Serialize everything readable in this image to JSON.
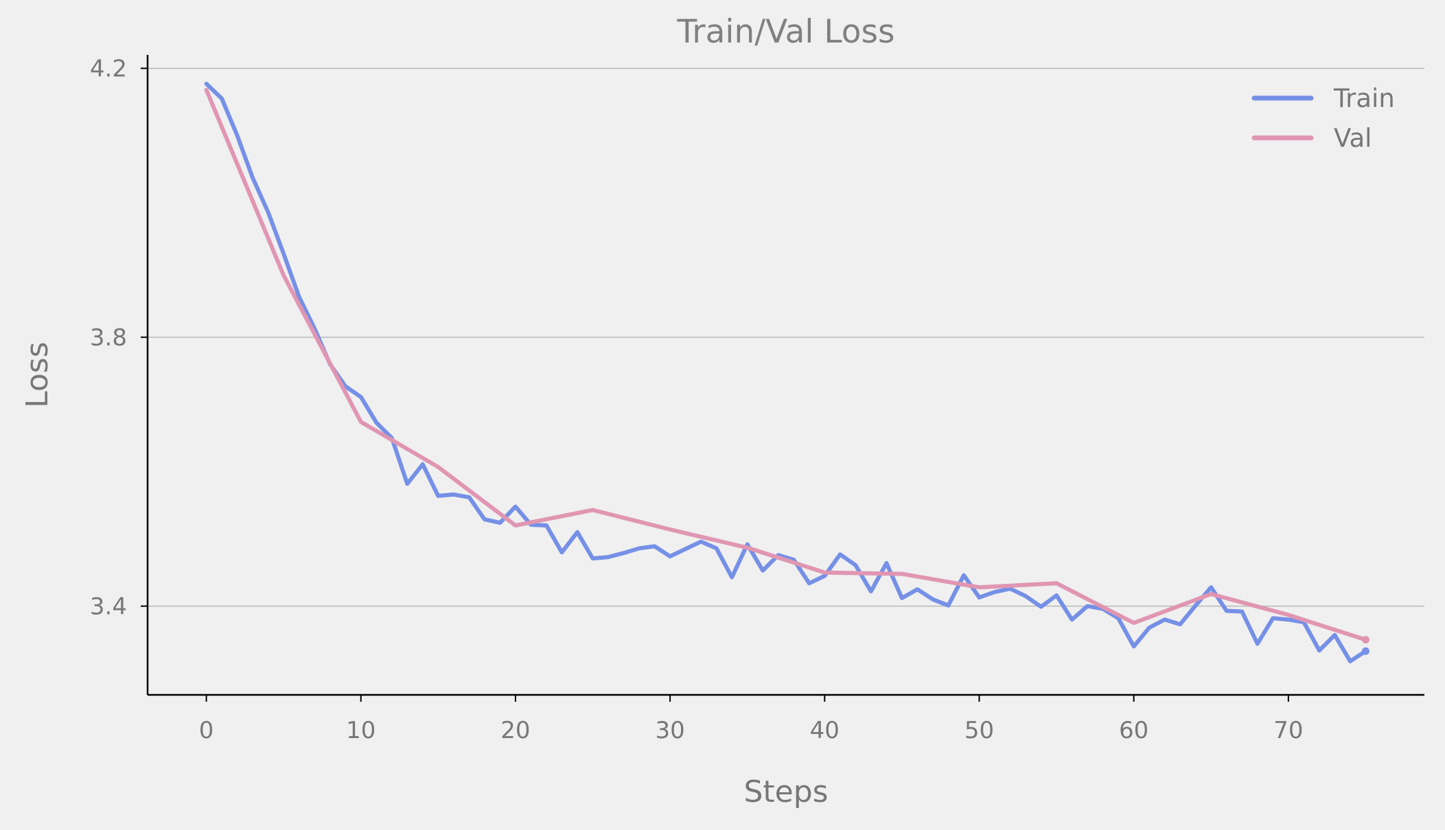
{
  "chart_data": {
    "type": "line",
    "title": "Train/Val Loss",
    "xlabel": "Steps",
    "ylabel": "Loss",
    "xlim": [
      -3.8,
      78.8
    ],
    "ylim": [
      3.268,
      4.22
    ],
    "xticks": [
      0,
      10,
      20,
      30,
      40,
      50,
      60,
      70
    ],
    "yticks": [
      3.4,
      3.8,
      4.2
    ],
    "ytick_labels": [
      "3.4",
      "3.8",
      "4.2"
    ],
    "grid": "y",
    "legend_position": "top-right",
    "series": [
      {
        "name": "Train",
        "color": "#7590e6",
        "x": [
          0,
          1,
          2,
          3,
          4,
          5,
          6,
          7,
          8,
          9,
          10,
          11,
          12,
          13,
          14,
          15,
          16,
          17,
          18,
          19,
          20,
          21,
          22,
          23,
          24,
          25,
          26,
          27,
          28,
          29,
          30,
          31,
          32,
          33,
          34,
          35,
          36,
          37,
          38,
          39,
          40,
          41,
          42,
          43,
          44,
          45,
          46,
          47,
          48,
          49,
          50,
          51,
          52,
          53,
          54,
          55,
          56,
          57,
          58,
          59,
          60,
          61,
          62,
          63,
          64,
          65,
          66,
          67,
          68,
          69,
          70,
          71,
          72,
          73,
          74,
          75
        ],
        "y": [
          4.177,
          4.155,
          4.1,
          4.037,
          3.986,
          3.924,
          3.86,
          3.813,
          3.76,
          3.727,
          3.711,
          3.673,
          3.65,
          3.582,
          3.611,
          3.564,
          3.566,
          3.562,
          3.529,
          3.524,
          3.548,
          3.521,
          3.52,
          3.48,
          3.51,
          3.471,
          3.473,
          3.479,
          3.486,
          3.489,
          3.474,
          3.485,
          3.496,
          3.486,
          3.443,
          3.492,
          3.453,
          3.476,
          3.469,
          3.434,
          3.445,
          3.477,
          3.461,
          3.422,
          3.464,
          3.412,
          3.425,
          3.41,
          3.401,
          3.446,
          3.413,
          3.421,
          3.426,
          3.415,
          3.399,
          3.416,
          3.38,
          3.4,
          3.396,
          3.382,
          3.34,
          3.368,
          3.38,
          3.373,
          3.401,
          3.428,
          3.393,
          3.392,
          3.344,
          3.382,
          3.38,
          3.376,
          3.334,
          3.357,
          3.318,
          3.333
        ]
      },
      {
        "name": "Val",
        "color": "#e096b2",
        "x": [
          0,
          5,
          10,
          15,
          20,
          25,
          30,
          35,
          40,
          45,
          50,
          55,
          60,
          65,
          70,
          75
        ],
        "y": [
          4.168,
          3.892,
          3.674,
          3.607,
          3.52,
          3.543,
          3.514,
          3.487,
          3.45,
          3.448,
          3.428,
          3.434,
          3.375,
          3.418,
          3.387,
          3.35
        ]
      }
    ]
  }
}
